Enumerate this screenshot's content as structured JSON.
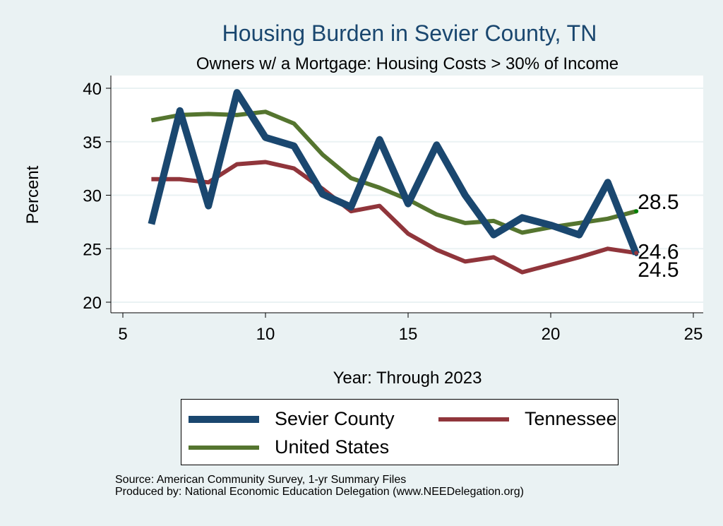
{
  "chart_data": {
    "type": "line",
    "title": "Housing Burden in Sevier County, TN",
    "subtitle": "Owners w/ a Mortgage: Housing Costs > 30% of Income",
    "xlabel": "Year: Through 2023",
    "ylabel": "Percent",
    "xlim": [
      5,
      25
    ],
    "ylim": [
      20,
      40
    ],
    "xticks": [
      5,
      10,
      15,
      20,
      25
    ],
    "yticks": [
      20,
      25,
      30,
      35,
      40
    ],
    "grid": true,
    "x": [
      6,
      7,
      8,
      9,
      10,
      11,
      12,
      13,
      14,
      15,
      16,
      17,
      18,
      19,
      20,
      21,
      22,
      23
    ],
    "series": [
      {
        "name": "Sevier County",
        "color": "#1a476f",
        "values": [
          27.3,
          37.9,
          29.0,
          39.6,
          35.4,
          34.6,
          30.1,
          28.9,
          35.2,
          29.2,
          34.7,
          30.0,
          26.3,
          27.9,
          27.2,
          26.3,
          31.2,
          24.5
        ],
        "end_label": "24.5"
      },
      {
        "name": "Tennessee",
        "color": "#90353b",
        "values": [
          31.5,
          31.5,
          31.2,
          32.9,
          33.1,
          32.5,
          30.6,
          28.5,
          29.0,
          26.4,
          24.9,
          23.8,
          24.2,
          22.8,
          23.5,
          24.2,
          25.0,
          24.6
        ],
        "end_label": "24.6"
      },
      {
        "name": "United States",
        "color": "#55752f",
        "values": [
          37.0,
          37.5,
          37.6,
          37.5,
          37.8,
          36.7,
          33.8,
          31.6,
          30.7,
          29.6,
          28.2,
          27.4,
          27.6,
          26.5,
          27.0,
          27.4,
          27.8,
          28.5
        ],
        "end_label": "28.5"
      }
    ],
    "legend": "bottom",
    "notes": [
      "Source: American Community Survey, 1-yr Summary Files",
      "Produced by: National Economic Education Delegation (www.NEEDelegation.org)"
    ]
  }
}
